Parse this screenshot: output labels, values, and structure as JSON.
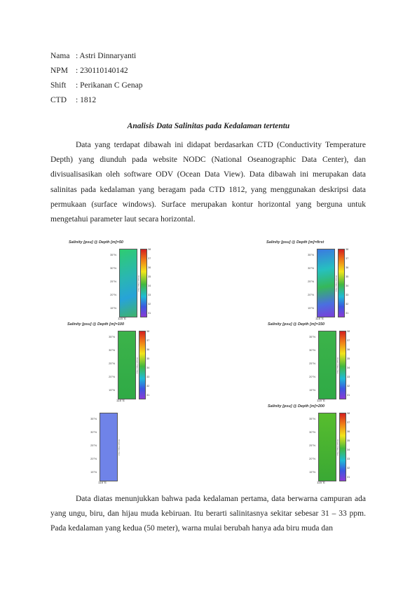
{
  "header": {
    "rows": [
      {
        "key": "Nama",
        "value": ": Astri Dinnaryanti"
      },
      {
        "key": "NPM",
        "value": ": 230110140142"
      },
      {
        "key": "Shift",
        "value": ": Perikanan C Genap"
      },
      {
        "key": "CTD",
        "value": ": 1812"
      }
    ]
  },
  "title": "Analisis Data Salinitas pada Kedalaman tertentu",
  "paragraph1": "Data yang terdapat dibawah ini didapat berdasarkan CTD (Conductivity Temperature Depth) yang diunduh pada website NODC (National Oseanographic Data Center), dan divisualisasikan oleh software ODV (Ocean Data View). Data dibawah ini merupakan data salinitas pada kedalaman yang beragam pada CTD 1812, yang menggunakan deskripsi data permukaan (surface windows). Surface merupakan kontur horizontal yang berguna untuk mengetahui parameter laut secara horizontal.",
  "paragraph2": "Data diatas menunjukkan bahwa pada kedalaman pertama, data berwarna campuran ada yang ungu, biru, dan hijau muda kebiruan. Itu berarti salinitasnya sekitar sebesar 31 – 33 ppm. Pada kedalaman yang kedua (50 meter), warna mulai berubah hanya ada biru muda dan",
  "maps": [
    {
      "caption": "Salinity [psu] @ Depth [m]=50",
      "lats": [
        "35°N",
        "30°N",
        "25°N",
        "20°N",
        "15°N"
      ],
      "lon": "115°E",
      "ticks": [
        "38",
        "37",
        "36",
        "35",
        "34",
        "33",
        "32",
        "31"
      ],
      "scale_label": "Ocean Data View"
    },
    {
      "caption": "Salinity [psu] @ Depth [m]=first",
      "lats": [
        "35°N",
        "30°N",
        "25°N",
        "20°N",
        "15°N"
      ],
      "lon": "115°E",
      "ticks": [
        "38",
        "37",
        "36",
        "35",
        "34",
        "33",
        "32",
        "31"
      ],
      "scale_label": "Ocean Data View"
    },
    {
      "caption": "Salinity [psu] @ Depth [m]=100",
      "lats": [
        "35°N",
        "30°N",
        "25°N",
        "20°N",
        "15°N"
      ],
      "lon": "115°E",
      "ticks": [
        "38",
        "37",
        "36",
        "35",
        "34",
        "33",
        "32",
        "31"
      ],
      "scale_label": "Ocean Data View"
    },
    {
      "caption": "Salinity [psu] @ Depth [m]=150",
      "lats": [
        "35°N",
        "30°N",
        "25°N",
        "20°N",
        "15°N"
      ],
      "lon": "115°E",
      "ticks": [
        "38",
        "37",
        "36",
        "35",
        "34",
        "33",
        "32",
        "31"
      ],
      "scale_label": "Ocean Data View"
    },
    {
      "caption": "",
      "lats": [
        "35°N",
        "30°N",
        "25°N",
        "20°N",
        "15°N"
      ],
      "lon": "115°E",
      "ticks": [],
      "scale_label": "Ocean Data View"
    },
    {
      "caption": "Salinity [psu] @ Depth [m]=200",
      "lats": [
        "35°N",
        "30°N",
        "25°N",
        "20°N",
        "15°N"
      ],
      "lon": "115°E",
      "ticks": [
        "38",
        "37",
        "36",
        "35",
        "34",
        "33",
        "32",
        "31"
      ],
      "scale_label": "Ocean Data View"
    }
  ]
}
